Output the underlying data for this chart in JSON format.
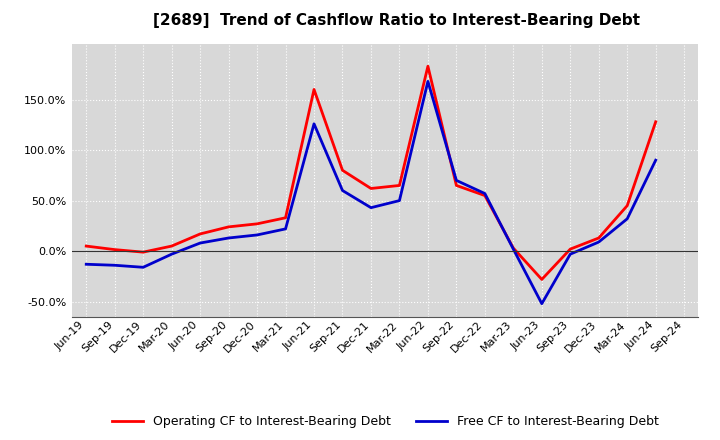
{
  "title": "[2689]  Trend of Cashflow Ratio to Interest-Bearing Debt",
  "x_labels": [
    "Jun-19",
    "Sep-19",
    "Dec-19",
    "Mar-20",
    "Jun-20",
    "Sep-20",
    "Dec-20",
    "Mar-21",
    "Jun-21",
    "Sep-21",
    "Dec-21",
    "Mar-22",
    "Jun-22",
    "Sep-22",
    "Dec-22",
    "Mar-23",
    "Jun-23",
    "Sep-23",
    "Dec-23",
    "Mar-24",
    "Jun-24",
    "Sep-24"
  ],
  "operating_cf": [
    5.0,
    1.5,
    -1.0,
    5.0,
    17.0,
    24.0,
    27.0,
    33.0,
    160.0,
    80.0,
    62.0,
    65.0,
    183.0,
    65.0,
    55.0,
    3.0,
    -28.0,
    2.0,
    13.0,
    45.0,
    128.0,
    null
  ],
  "free_cf": [
    -13.0,
    -14.0,
    -16.0,
    -3.0,
    8.0,
    13.0,
    16.0,
    22.0,
    126.0,
    60.0,
    43.0,
    50.0,
    168.0,
    70.0,
    57.0,
    2.0,
    -52.0,
    -3.0,
    9.0,
    32.0,
    90.0,
    null
  ],
  "ylim_min": -65,
  "ylim_max": 205,
  "yticks": [
    -50.0,
    0.0,
    50.0,
    100.0,
    150.0
  ],
  "operating_color": "#ff0000",
  "free_color": "#0000cc",
  "bg_color": "#ffffff",
  "plot_bg_color": "#d8d8d8",
  "grid_color": "#ffffff",
  "zero_line_color": "#333333",
  "legend_op": "Operating CF to Interest-Bearing Debt",
  "legend_free": "Free CF to Interest-Bearing Debt",
  "title_fontsize": 11,
  "tick_fontsize": 8,
  "legend_fontsize": 9,
  "linewidth": 2.0
}
